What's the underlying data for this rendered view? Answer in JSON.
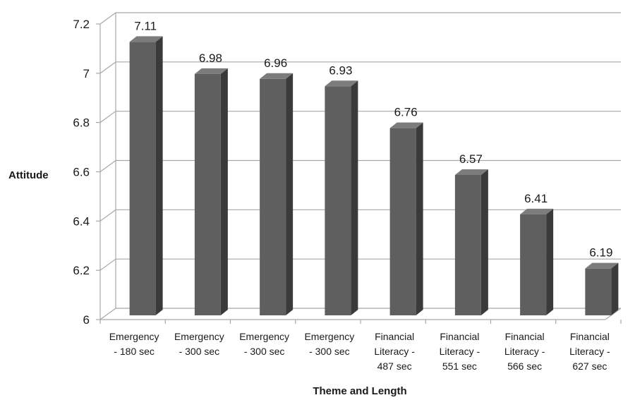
{
  "chart_data": {
    "type": "bar",
    "title": "",
    "xlabel": "Theme and Length",
    "ylabel": "Attitude",
    "ylim": [
      6,
      7.2
    ],
    "yticks": [
      "6",
      "6.2",
      "6.4",
      "6.6",
      "6.8",
      "7",
      "7.2"
    ],
    "categories": [
      [
        "Emergency",
        "- 180 sec"
      ],
      [
        "Emergency",
        "- 300 sec"
      ],
      [
        "Emergency",
        "- 300 sec"
      ],
      [
        "Emergency",
        "- 300 sec"
      ],
      [
        "Financial",
        "Literacy -",
        "487 sec"
      ],
      [
        "Financial",
        "Literacy -",
        "551 sec"
      ],
      [
        "Financial",
        "Literacy -",
        "566 sec"
      ],
      [
        "Financial",
        "Literacy -",
        "627 sec"
      ]
    ],
    "values": [
      7.11,
      6.98,
      6.96,
      6.93,
      6.76,
      6.57,
      6.41,
      6.19
    ],
    "data_labels": [
      "7.11",
      "6.98",
      "6.96",
      "6.93",
      "6.76",
      "6.57",
      "6.41",
      "6.19"
    ],
    "grid": true,
    "legend": "none",
    "style": "3d-column",
    "colors": {
      "bar_front": "#5f5f5f",
      "bar_side": "#3a3a3a",
      "bar_top": "#7c7c7c",
      "grid": "#a8a8a8"
    }
  }
}
